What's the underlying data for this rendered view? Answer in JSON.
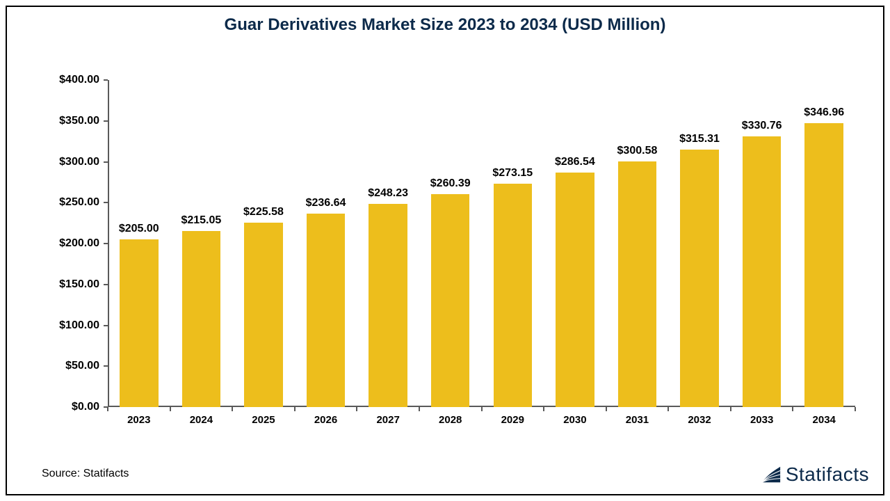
{
  "chart": {
    "type": "bar",
    "title": "Guar Derivatives Market Size 2023 to 2034 (USD Million)",
    "title_fontsize": 24,
    "title_color": "#0c2a4a",
    "background_color": "#ffffff",
    "border_color": "#000000",
    "axis_color": "#595959",
    "categories": [
      "2023",
      "2024",
      "2025",
      "2026",
      "2027",
      "2028",
      "2029",
      "2030",
      "2031",
      "2032",
      "2033",
      "2034"
    ],
    "values": [
      205.0,
      215.05,
      225.58,
      236.64,
      248.23,
      260.39,
      273.15,
      286.54,
      300.58,
      315.31,
      330.76,
      346.96
    ],
    "value_labels": [
      "$205.00",
      "$215.05",
      "$225.58",
      "$236.64",
      "$248.23",
      "$260.39",
      "$273.15",
      "$286.54",
      "$300.58",
      "$315.31",
      "$330.76",
      "$346.96"
    ],
    "bar_color": "#edbe1c",
    "bar_width_ratio": 0.62,
    "ylim": [
      0,
      400
    ],
    "ytick_step": 50,
    "ytick_labels": [
      "$0.00",
      "$50.00",
      "$100.00",
      "$150.00",
      "$200.00",
      "$250.00",
      "$300.00",
      "$350.00",
      "$400.00"
    ],
    "y_label_fontsize": 16,
    "x_label_fontsize": 15,
    "value_label_fontsize": 16,
    "label_color": "#000000"
  },
  "footer": {
    "source_text": "Source: Statifacts",
    "source_fontsize": 16,
    "brand_name": "Statifacts",
    "brand_fontsize": 28,
    "brand_color": "#0c2a4a"
  }
}
